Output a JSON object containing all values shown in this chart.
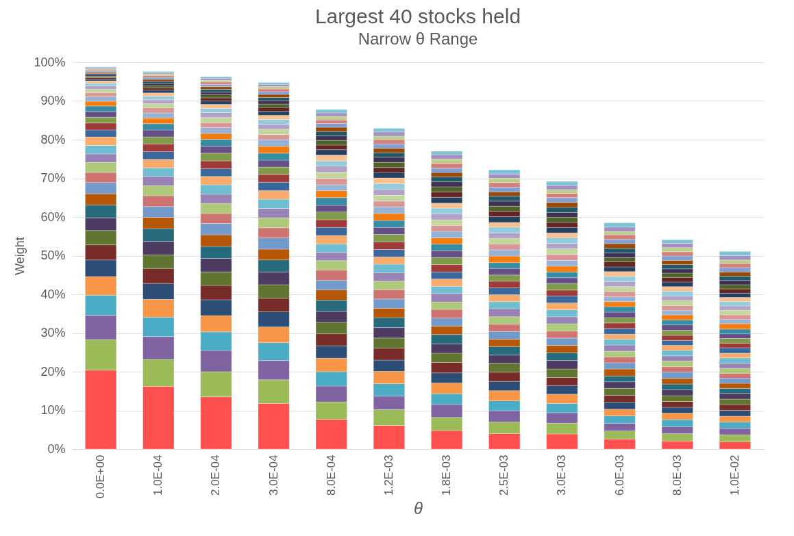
{
  "chart_data": {
    "type": "bar",
    "stacked": true,
    "title": "Largest 40 stocks held",
    "subtitle": "Narrow θ Range",
    "xlabel": "θ",
    "ylabel": "Weight",
    "categories": [
      "0.0E+00",
      "1.0E-04",
      "2.0E-04",
      "3.0E-04",
      "8.0E-04",
      "1.2E-03",
      "1.8E-03",
      "2.5E-03",
      "3.0E-03",
      "6.0E-03",
      "8.0E-03",
      "1.0E-02"
    ],
    "ylim": [
      0,
      100
    ],
    "yticks": [
      {
        "value": 0,
        "label": "0%"
      },
      {
        "value": 10,
        "label": "10%"
      },
      {
        "value": 20,
        "label": "20%"
      },
      {
        "value": 30,
        "label": "30%"
      },
      {
        "value": 40,
        "label": "40%"
      },
      {
        "value": 50,
        "label": "50%"
      },
      {
        "value": 60,
        "label": "60%"
      },
      {
        "value": 70,
        "label": "70%"
      },
      {
        "value": 80,
        "label": "80%"
      },
      {
        "value": 90,
        "label": "90%"
      },
      {
        "value": 100,
        "label": "100%"
      }
    ],
    "grid": "y",
    "series": [
      {
        "color": "#ff5050",
        "values": [
          20.4,
          16.2,
          13.5,
          11.8,
          7.7,
          6.1,
          4.8,
          4.0,
          3.9,
          2.6,
          2.1,
          1.9
        ]
      },
      {
        "color": "#9bbb59",
        "values": [
          7.9,
          7.0,
          6.5,
          6.1,
          4.5,
          4.1,
          3.4,
          3.0,
          2.8,
          2.1,
          1.9,
          1.8
        ]
      },
      {
        "color": "#8064a2",
        "values": [
          6.3,
          5.9,
          5.5,
          5.0,
          4.1,
          3.5,
          3.3,
          2.9,
          2.7,
          2.0,
          1.8,
          1.7
        ]
      },
      {
        "color": "#4bacc6",
        "values": [
          5.2,
          5.0,
          4.8,
          4.6,
          3.7,
          3.2,
          2.8,
          2.6,
          2.4,
          1.9,
          1.8,
          1.6
        ]
      },
      {
        "color": "#f79646",
        "values": [
          4.8,
          4.6,
          4.2,
          4.1,
          3.5,
          3.2,
          2.8,
          2.6,
          2.4,
          1.7,
          1.7,
          1.5
        ]
      },
      {
        "color": "#2c4d75",
        "values": [
          4.3,
          4.1,
          4.1,
          3.9,
          3.2,
          2.9,
          2.6,
          2.4,
          2.2,
          1.8,
          1.5,
          1.5
        ]
      },
      {
        "color": "#772c2a",
        "values": [
          3.9,
          3.9,
          3.7,
          3.5,
          3.1,
          3.1,
          2.7,
          2.4,
          2.1,
          1.8,
          1.5,
          1.5
        ]
      },
      {
        "color": "#5f7530",
        "values": [
          3.7,
          3.5,
          3.5,
          3.5,
          3.0,
          2.6,
          2.4,
          2.3,
          2.2,
          1.8,
          1.5,
          1.4
        ]
      },
      {
        "color": "#4d3b62",
        "values": [
          3.3,
          3.5,
          3.5,
          3.3,
          2.8,
          2.7,
          2.4,
          2.1,
          2.2,
          1.7,
          1.5,
          1.5
        ]
      },
      {
        "color": "#276a7c",
        "values": [
          3.3,
          3.3,
          3.1,
          3.1,
          2.9,
          2.6,
          2.4,
          2.2,
          2.0,
          1.5,
          1.5,
          1.3
        ]
      },
      {
        "color": "#b65708",
        "values": [
          2.9,
          2.9,
          3.0,
          2.8,
          2.7,
          2.4,
          2.2,
          1.9,
          1.9,
          1.8,
          1.5,
          1.3
        ]
      },
      {
        "color": "#729aca",
        "values": [
          2.9,
          2.8,
          2.9,
          2.9,
          2.4,
          2.4,
          2.1,
          2.0,
          1.9,
          1.6,
          1.6,
          1.3
        ]
      },
      {
        "color": "#cd7371",
        "values": [
          2.6,
          2.8,
          2.6,
          2.6,
          2.7,
          2.4,
          2.2,
          1.9,
          1.8,
          1.5,
          1.4,
          1.3
        ]
      },
      {
        "color": "#afc97a",
        "values": [
          2.6,
          2.6,
          2.6,
          2.6,
          2.4,
          2.2,
          1.9,
          1.9,
          1.9,
          1.5,
          1.5,
          1.3
        ]
      },
      {
        "color": "#9983b5",
        "values": [
          2.2,
          2.4,
          2.4,
          2.4,
          2.2,
          2.2,
          2.2,
          2.1,
          1.8,
          1.6,
          1.3,
          1.3
        ]
      },
      {
        "color": "#6fbdd1",
        "values": [
          2.2,
          2.2,
          2.4,
          2.4,
          2.1,
          2.2,
          1.9,
          1.8,
          1.8,
          1.5,
          1.4,
          1.4
        ]
      },
      {
        "color": "#f9ab6b",
        "values": [
          2.2,
          2.2,
          2.2,
          2.2,
          2.2,
          1.9,
          1.9,
          1.8,
          1.8,
          1.3,
          1.3,
          1.2
        ]
      },
      {
        "color": "#3a679c",
        "values": [
          1.8,
          2.0,
          2.0,
          2.2,
          2.1,
          1.9,
          1.8,
          1.8,
          1.8,
          1.5,
          1.3,
          1.4
        ]
      },
      {
        "color": "#9e3b38",
        "values": [
          1.8,
          2.0,
          2.0,
          2.0,
          2.0,
          2.0,
          1.9,
          1.7,
          1.5,
          1.4,
          1.3,
          1.2
        ]
      },
      {
        "color": "#7f9a48",
        "values": [
          1.5,
          1.8,
          2.0,
          1.9,
          2.0,
          1.9,
          1.8,
          1.6,
          1.7,
          1.4,
          1.3,
          1.2
        ]
      },
      {
        "color": "#664f86",
        "values": [
          1.5,
          1.8,
          1.8,
          1.8,
          1.7,
          1.8,
          1.8,
          1.7,
          1.5,
          1.4,
          1.4,
          1.2
        ]
      },
      {
        "color": "#358ca3",
        "values": [
          1.4,
          1.6,
          1.8,
          1.8,
          2.0,
          1.8,
          1.7,
          1.5,
          1.5,
          1.4,
          1.3,
          1.2
        ]
      },
      {
        "color": "#f47b0c",
        "values": [
          1.2,
          1.5,
          1.5,
          1.8,
          1.8,
          1.8,
          1.6,
          1.7,
          1.5,
          1.3,
          1.3,
          1.4
        ]
      },
      {
        "color": "#95b3d7",
        "values": [
          1.2,
          1.3,
          1.5,
          1.7,
          1.5,
          1.7,
          1.7,
          1.6,
          1.5,
          1.3,
          1.1,
          1.1
        ]
      },
      {
        "color": "#d99694",
        "values": [
          1.0,
          1.3,
          1.3,
          1.3,
          1.7,
          1.5,
          1.5,
          1.5,
          1.5,
          1.3,
          1.3,
          1.2
        ]
      },
      {
        "color": "#c3d69b",
        "values": [
          0.9,
          1.1,
          1.3,
          1.4,
          1.6,
          1.5,
          1.5,
          1.5,
          1.5,
          1.3,
          1.3,
          1.2
        ]
      },
      {
        "color": "#b2a2c7",
        "values": [
          0.9,
          1.0,
          1.3,
          1.3,
          1.6,
          1.5,
          1.5,
          1.4,
          1.4,
          1.3,
          1.2,
          1.1
        ]
      },
      {
        "color": "#93cddd",
        "values": [
          0.7,
          0.9,
          1.1,
          1.2,
          1.3,
          1.5,
          1.5,
          1.5,
          1.5,
          1.3,
          1.2,
          1.1
        ]
      },
      {
        "color": "#fac090",
        "values": [
          0.6,
          0.9,
          1.0,
          1.1,
          1.5,
          1.5,
          1.3,
          1.2,
          1.2,
          1.3,
          1.2,
          1.1
        ]
      },
      {
        "color": "#254061",
        "values": [
          0.4,
          0.7,
          0.9,
          1.0,
          1.4,
          1.4,
          1.5,
          1.5,
          1.4,
          1.2,
          1.2,
          1.1
        ]
      },
      {
        "color": "#632523",
        "values": [
          0.4,
          0.6,
          0.8,
          1.0,
          1.2,
          1.3,
          1.4,
          1.4,
          1.3,
          1.3,
          1.2,
          1.1
        ]
      },
      {
        "color": "#4f6228",
        "values": [
          0.4,
          0.6,
          0.8,
          0.9,
          1.2,
          1.3,
          1.3,
          1.3,
          1.3,
          1.1,
          1.1,
          1.1
        ]
      },
      {
        "color": "#3f3151",
        "values": [
          0.4,
          0.6,
          0.7,
          0.9,
          1.2,
          1.4,
          1.3,
          1.3,
          1.3,
          1.2,
          1.1,
          1.1
        ]
      },
      {
        "color": "#215968",
        "values": [
          0.3,
          0.5,
          0.7,
          0.8,
          1.1,
          1.1,
          1.3,
          1.3,
          1.3,
          1.2,
          1.1,
          1.1
        ]
      },
      {
        "color": "#984807",
        "values": [
          0.3,
          0.5,
          0.7,
          0.8,
          1.1,
          1.2,
          1.1,
          1.1,
          1.3,
          1.2,
          1.1,
          1.1
        ]
      },
      {
        "color": "#7fa0d0",
        "values": [
          0.3,
          0.5,
          0.6,
          0.7,
          1.0,
          1.1,
          1.1,
          1.2,
          1.2,
          1.1,
          1.1,
          1.1
        ]
      },
      {
        "color": "#d47f7d",
        "values": [
          0.3,
          0.5,
          0.6,
          0.7,
          0.9,
          1.1,
          1.3,
          1.2,
          1.1,
          1.2,
          1.1,
          1.1
        ]
      },
      {
        "color": "#bbcf8b",
        "values": [
          0.3,
          0.4,
          0.5,
          0.6,
          0.9,
          0.9,
          1.1,
          1.1,
          1.0,
          0.9,
          1.1,
          0.9
        ]
      },
      {
        "color": "#a590c1",
        "values": [
          0.3,
          0.3,
          0.5,
          0.6,
          0.9,
          1.1,
          1.1,
          1.1,
          1.1,
          1.1,
          1.1,
          1.1
        ]
      },
      {
        "color": "#7dc3d6",
        "values": [
          0.2,
          0.3,
          0.4,
          0.5,
          0.9,
          0.9,
          0.9,
          1.1,
          1.0,
          1.1,
          0.9,
          1.1
        ]
      }
    ]
  }
}
